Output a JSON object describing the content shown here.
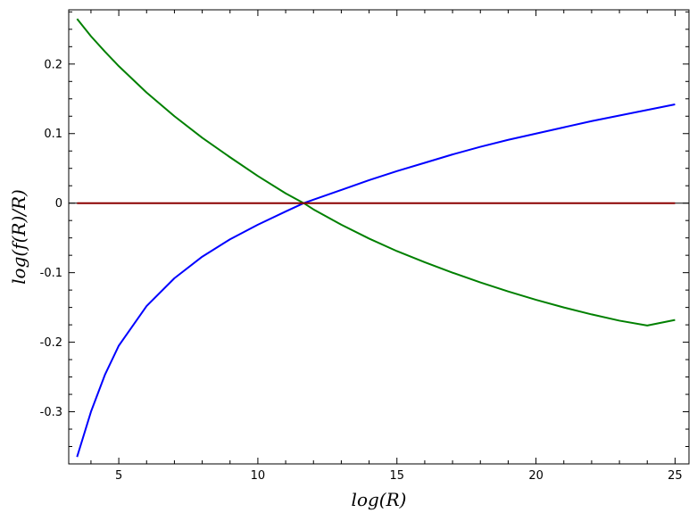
{
  "chart_data": {
    "type": "line",
    "xlabel": "log(R)",
    "ylabel": "log(f(R)/R)",
    "xlim": [
      3.2,
      25.5
    ],
    "ylim": [
      -0.375,
      0.278
    ],
    "x_ticks": [
      5,
      10,
      15,
      20,
      25
    ],
    "x_tick_labels": [
      "5",
      "10",
      "15",
      "20",
      "25"
    ],
    "y_ticks": [
      -0.3,
      -0.2,
      -0.1,
      0,
      0.1,
      0.2
    ],
    "y_tick_labels": [
      "-0.3",
      "-0.2",
      "-0.1",
      "0",
      "0.1",
      "0.2"
    ],
    "grid": false,
    "legend": "none",
    "series": [
      {
        "color": "#0000ff",
        "x": [
          3.5,
          4,
          4.5,
          5,
          6,
          7,
          8,
          9,
          10,
          11,
          11.65,
          12,
          13,
          14,
          15,
          16,
          17,
          18,
          19,
          20,
          21,
          22,
          23,
          24,
          25
        ],
        "y": [
          -0.365,
          -0.3,
          -0.247,
          -0.205,
          -0.148,
          -0.108,
          -0.077,
          -0.052,
          -0.031,
          -0.012,
          0.0,
          0.005,
          0.019,
          0.033,
          0.046,
          0.058,
          0.07,
          0.081,
          0.091,
          0.1,
          0.109,
          0.118,
          0.126,
          0.134,
          0.142
        ]
      },
      {
        "color": "#008000",
        "x": [
          3.5,
          4,
          4.5,
          5,
          6,
          7,
          8,
          9,
          10,
          11,
          11.65,
          12,
          13,
          14,
          15,
          16,
          17,
          18,
          19,
          20,
          21,
          22,
          23,
          24,
          25
        ],
        "y": [
          0.265,
          0.24,
          0.218,
          0.197,
          0.159,
          0.125,
          0.094,
          0.066,
          0.039,
          0.014,
          0.0,
          -0.009,
          -0.031,
          -0.051,
          -0.069,
          -0.085,
          -0.1,
          -0.114,
          -0.127,
          -0.139,
          -0.15,
          -0.16,
          -0.169,
          -0.176,
          -0.168
        ]
      },
      {
        "color": "#8b0000",
        "x": [
          3.5,
          25
        ],
        "y": [
          0,
          0
        ]
      }
    ]
  },
  "colors": {
    "axis": "#000000",
    "zero_line": "#000000"
  }
}
